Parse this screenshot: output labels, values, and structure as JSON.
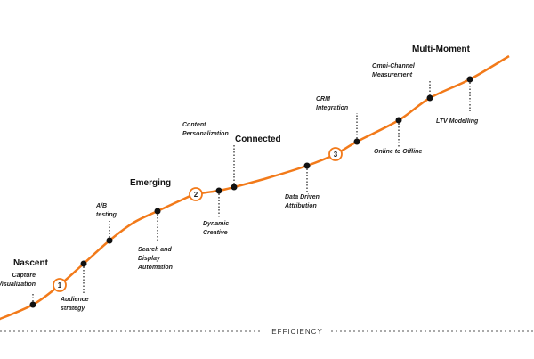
{
  "stages": [
    "Nascent",
    "Emerging",
    "Connected",
    "Multi-Moment"
  ],
  "markers": [
    "1",
    "2",
    "3"
  ],
  "milestones": [
    {
      "lines": [
        "Capture",
        "Visualization"
      ]
    },
    {
      "lines": [
        "Audience",
        "strategy"
      ]
    },
    {
      "lines": [
        "A/B",
        "testing"
      ]
    },
    {
      "lines": [
        "Search and",
        "Display",
        "Automation"
      ]
    },
    {
      "lines": [
        "Dynamic",
        "Creative"
      ]
    },
    {
      "lines": [
        "Content",
        "Personalization"
      ]
    },
    {
      "lines": [
        "Data Driven",
        "Attribution"
      ]
    },
    {
      "lines": [
        "CRM",
        "Integration"
      ]
    },
    {
      "lines": [
        "Online to  Offline"
      ]
    },
    {
      "lines": [
        "Omni-Channel",
        "Measurement"
      ]
    },
    {
      "lines": [
        "LTV Modelling"
      ]
    }
  ],
  "axis_label": "EFFICIENCY"
}
